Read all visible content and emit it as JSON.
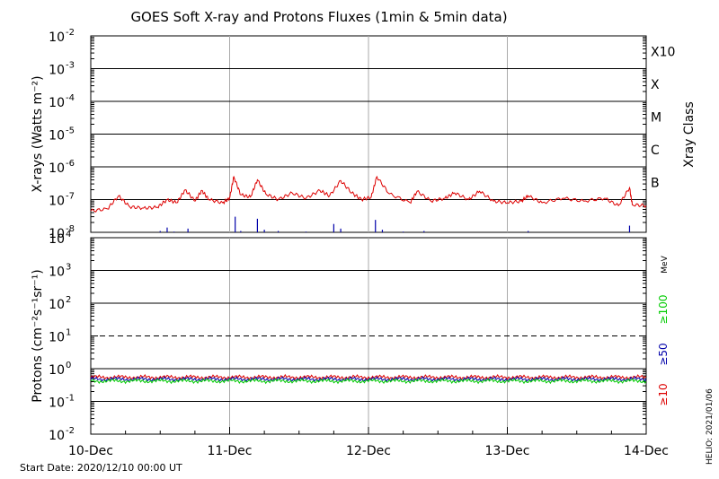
{
  "title": "GOES Soft X-ray and Protons Fluxes   (1min & 5min data)",
  "start_date": "Start Date: 2020/12/10 00:00 UT",
  "footer_stamp": "HELIO: 2021/01/06",
  "chart_data": [
    {
      "type": "line",
      "name": "xray",
      "ylabel": "X-rays (Watts m⁻²)",
      "yscale": "log",
      "ylim": [
        1e-08,
        0.01
      ],
      "ytick_mantissa": [
        "10",
        "10",
        "10",
        "10",
        "10",
        "10",
        "10"
      ],
      "ytick_exponents": [
        "-8",
        "-7",
        "-6",
        "-5",
        "-4",
        "-3",
        "-2"
      ],
      "right_axis_title": "Xray Class",
      "flare_classes": [
        {
          "label": "B",
          "level": 1e-07
        },
        {
          "label": "C",
          "level": 1e-06
        },
        {
          "label": "M",
          "level": 1e-05
        },
        {
          "label": "X",
          "level": 0.0001
        },
        {
          "label": "X10",
          "level": 0.001
        }
      ],
      "grid_levels": [
        1e-07,
        1e-06,
        1e-05,
        0.0001,
        0.001
      ],
      "xlim_days": [
        0,
        4
      ],
      "series": [
        {
          "color": "#dd0000",
          "points": [
            [
              0,
              4.5e-08
            ],
            [
              0.12,
              5.2e-08
            ],
            [
              0.2,
              1.3e-07
            ],
            [
              0.28,
              6e-08
            ],
            [
              0.38,
              5.5e-08
            ],
            [
              0.48,
              5.8e-08
            ],
            [
              0.55,
              1e-07
            ],
            [
              0.62,
              8e-08
            ],
            [
              0.68,
              2e-07
            ],
            [
              0.75,
              9e-08
            ],
            [
              0.8,
              1.9e-07
            ],
            [
              0.85,
              1e-07
            ],
            [
              0.95,
              8e-08
            ],
            [
              1.0,
              1.1e-07
            ],
            [
              1.03,
              5e-07
            ],
            [
              1.08,
              1.4e-07
            ],
            [
              1.15,
              1.2e-07
            ],
            [
              1.2,
              4e-07
            ],
            [
              1.26,
              1.5e-07
            ],
            [
              1.35,
              1e-07
            ],
            [
              1.45,
              1.6e-07
            ],
            [
              1.55,
              1.1e-07
            ],
            [
              1.65,
              1.9e-07
            ],
            [
              1.72,
              1.3e-07
            ],
            [
              1.8,
              3.8e-07
            ],
            [
              1.88,
              1.6e-07
            ],
            [
              1.95,
              1e-07
            ],
            [
              2.02,
              1.2e-07
            ],
            [
              2.06,
              5e-07
            ],
            [
              2.15,
              1.5e-07
            ],
            [
              2.3,
              8e-08
            ],
            [
              2.35,
              1.8e-07
            ],
            [
              2.45,
              9e-08
            ],
            [
              2.55,
              1.1e-07
            ],
            [
              2.62,
              1.6e-07
            ],
            [
              2.72,
              1e-07
            ],
            [
              2.8,
              1.8e-07
            ],
            [
              2.9,
              9e-08
            ],
            [
              3.0,
              8e-08
            ],
            [
              3.1,
              9e-08
            ],
            [
              3.15,
              1.3e-07
            ],
            [
              3.25,
              8e-08
            ],
            [
              3.4,
              1.1e-07
            ],
            [
              3.55,
              9e-08
            ],
            [
              3.7,
              1.1e-07
            ],
            [
              3.8,
              6.5e-08
            ],
            [
              3.88,
              2.3e-07
            ],
            [
              3.9,
              7e-08
            ],
            [
              4.0,
              6.5e-08
            ]
          ]
        },
        {
          "color": "#0000aa",
          "points": [
            [
              0.5,
              1.1e-08
            ],
            [
              0.55,
              1.4e-08
            ],
            [
              0.6,
              1.05e-08
            ],
            [
              0.7,
              1.3e-08
            ],
            [
              1.04,
              3e-08
            ],
            [
              1.08,
              1.1e-08
            ],
            [
              1.2,
              2.6e-08
            ],
            [
              1.25,
              1.2e-08
            ],
            [
              1.35,
              1.1e-08
            ],
            [
              1.55,
              1.05e-08
            ],
            [
              1.75,
              1.8e-08
            ],
            [
              1.8,
              1.3e-08
            ],
            [
              2.05,
              2.4e-08
            ],
            [
              2.1,
              1.2e-08
            ],
            [
              2.25,
              1.05e-08
            ],
            [
              2.4,
              1.1e-08
            ],
            [
              3.15,
              1.1e-08
            ],
            [
              3.88,
              1.6e-08
            ]
          ]
        }
      ]
    },
    {
      "type": "line",
      "name": "protons",
      "ylabel": "Protons (cm⁻²s⁻¹sr⁻¹)",
      "yscale": "log",
      "ylim": [
        0.01,
        10000
      ],
      "ytick_mantissa": [
        "10",
        "10",
        "10",
        "10",
        "10",
        "10",
        "10"
      ],
      "ytick_exponents": [
        "-2",
        "-1",
        "0",
        "1",
        "2",
        "3",
        "4"
      ],
      "grid_levels": [
        0.1,
        1,
        100,
        1000
      ],
      "dashed_levels": [
        10
      ],
      "right_axis_title": "MeV",
      "energy_channels": [
        {
          "label": "≥10",
          "color": "#dd0000",
          "level": 0.55
        },
        {
          "label": "≥50",
          "color": "#0000aa",
          "level": 0.48
        },
        {
          "label": "≥100",
          "color": "#00cc00",
          "level": 0.42
        }
      ],
      "xlim_days": [
        0,
        4
      ],
      "x_categories": [
        "10-Dec",
        "11-Dec",
        "12-Dec",
        "13-Dec",
        "14-Dec"
      ]
    }
  ]
}
